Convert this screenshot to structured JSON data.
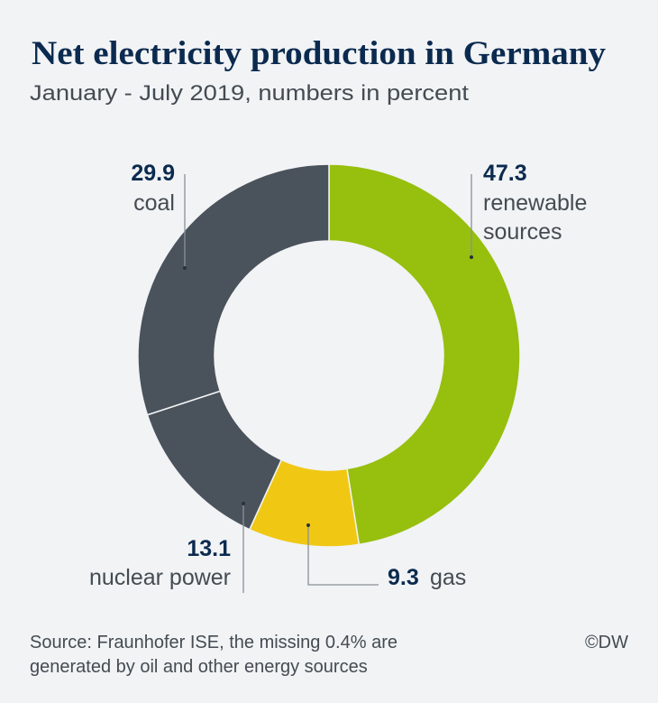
{
  "chart_data": {
    "type": "pie",
    "style": "donut",
    "title": "Net electricity production in Germany",
    "subtitle": "January - July 2019, numbers in percent",
    "slices": [
      {
        "label": "renewable sources",
        "label_lines": [
          "renewable",
          "sources"
        ],
        "value": 47.3,
        "value_text": "47.3",
        "color": "#97bf0d"
      },
      {
        "label": "gas",
        "label_lines": [
          "gas"
        ],
        "value": 9.3,
        "value_text": "9.3",
        "color": "#f0c814"
      },
      {
        "label": "nuclear power",
        "label_lines": [
          "nuclear power"
        ],
        "value": 13.1,
        "value_text": "13.1",
        "color": "#4a525b"
      },
      {
        "label": "coal",
        "label_lines": [
          "coal"
        ],
        "value": 29.9,
        "value_text": "29.9",
        "color": "#4a525b"
      }
    ],
    "start": "top",
    "direction": "clockwise",
    "source": [
      "Source: Fraunhofer ISE, the missing 0.4% are",
      "generated by oil and other energy sources"
    ],
    "credit": "©DW"
  }
}
